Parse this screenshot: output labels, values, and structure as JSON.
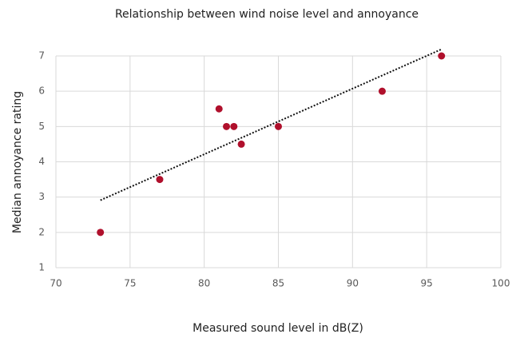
{
  "chart_data": {
    "type": "scatter",
    "title": "Relationship between wind noise level and annoyance",
    "x_label": "Measured sound level in dB(Z)",
    "y_label": "Median annoyance rating",
    "series": [
      {
        "color": "#b0102c",
        "x": [
          73,
          77,
          81,
          81.5,
          82,
          82.5,
          85,
          92,
          96
        ],
        "values": [
          2,
          3.5,
          5.5,
          5,
          5,
          4.5,
          5,
          6,
          7
        ]
      }
    ],
    "trendline": "linear",
    "xlim": [
      70,
      100
    ],
    "xticks": [
      70,
      75,
      80,
      85,
      90,
      95,
      100
    ],
    "ylim": [
      1,
      7
    ],
    "yticks": [
      1,
      2,
      3,
      4,
      5,
      6,
      7
    ],
    "grid": true
  }
}
